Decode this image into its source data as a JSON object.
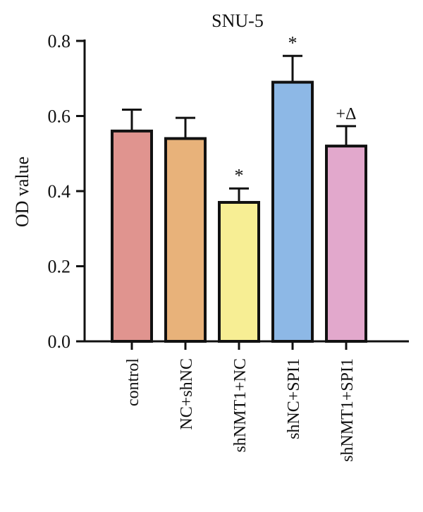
{
  "chart_data": {
    "type": "bar",
    "title": "SNU-5",
    "ylabel": "OD value",
    "xlabel": "",
    "ylim": [
      0,
      0.8
    ],
    "yticks": [
      0.0,
      0.2,
      0.4,
      0.6,
      0.8
    ],
    "ytick_labels": [
      "0.0",
      "0.2",
      "0.4",
      "0.6",
      "0.8"
    ],
    "grid": false,
    "categories": [
      "control",
      "NC+shNC",
      "shNMT1+NC",
      "shNC+SPI1",
      "shNMT1+SPI1"
    ],
    "values": [
      0.56,
      0.54,
      0.37,
      0.69,
      0.52
    ],
    "errors": [
      0.057,
      0.055,
      0.037,
      0.07,
      0.053
    ],
    "annotations": [
      "",
      "",
      "*",
      "*",
      "+Δ"
    ],
    "colors": [
      "#e0948f",
      "#e8b27a",
      "#f7ee94",
      "#8db8e6",
      "#e2a8cc"
    ]
  }
}
